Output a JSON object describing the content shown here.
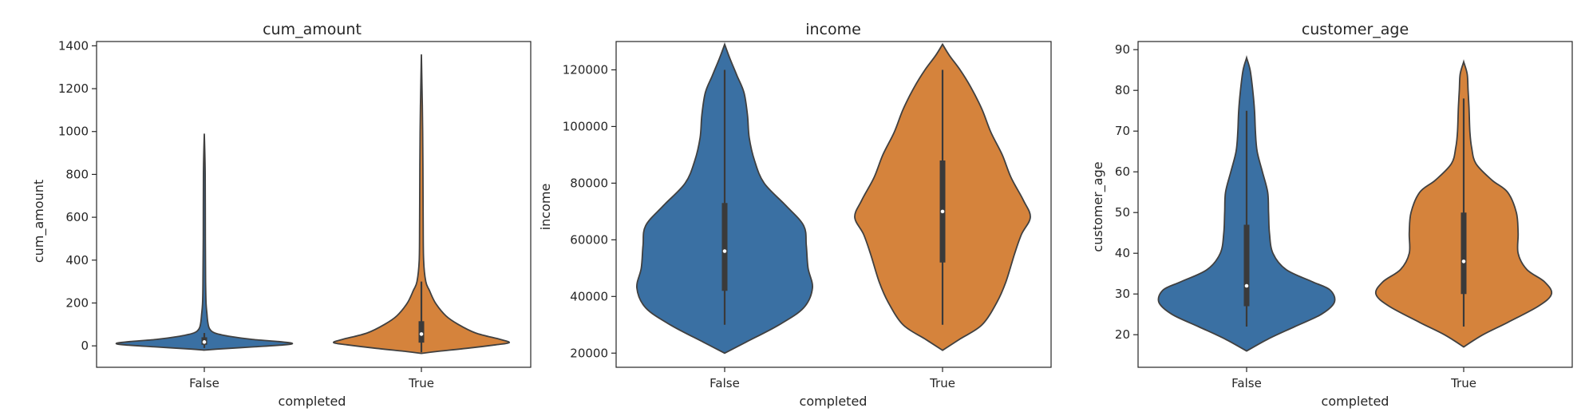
{
  "chart_data": [
    {
      "type": "violin",
      "title": "cum_amount",
      "xlabel": "completed",
      "ylabel": "cum_amount",
      "categories": [
        "False",
        "True"
      ],
      "colors": [
        "#3a70a3",
        "#d5833c"
      ],
      "ylim": [
        -100,
        1420
      ],
      "yticks": [
        0,
        200,
        400,
        600,
        800,
        1000,
        1200,
        1400
      ],
      "groups": [
        {
          "category": "False",
          "min": -20,
          "max": 990,
          "q1": 5,
          "median": 18,
          "q3": 40,
          "whisker_low": -10,
          "whisker_high": 60,
          "density": [
            [
              -20,
              0
            ],
            [
              -15,
              0.15
            ],
            [
              -5,
              0.55
            ],
            [
              5,
              0.92
            ],
            [
              12,
              1.0
            ],
            [
              20,
              0.85
            ],
            [
              30,
              0.55
            ],
            [
              45,
              0.28
            ],
            [
              60,
              0.12
            ],
            [
              80,
              0.06
            ],
            [
              110,
              0.04
            ],
            [
              150,
              0.03
            ],
            [
              200,
              0.02
            ],
            [
              300,
              0.015
            ],
            [
              500,
              0.012
            ],
            [
              800,
              0.01
            ],
            [
              990,
              0
            ]
          ]
        },
        {
          "category": "True",
          "min": -35,
          "max": 1360,
          "q1": 15,
          "median": 55,
          "q3": 115,
          "whisker_low": -30,
          "whisker_high": 300,
          "density": [
            [
              -35,
              0
            ],
            [
              -25,
              0.2
            ],
            [
              -10,
              0.55
            ],
            [
              5,
              0.85
            ],
            [
              15,
              1.0
            ],
            [
              30,
              0.9
            ],
            [
              60,
              0.62
            ],
            [
              100,
              0.42
            ],
            [
              140,
              0.28
            ],
            [
              200,
              0.16
            ],
            [
              260,
              0.09
            ],
            [
              300,
              0.05
            ],
            [
              400,
              0.025
            ],
            [
              600,
              0.02
            ],
            [
              1000,
              0.015
            ],
            [
              1360,
              0
            ]
          ]
        }
      ]
    },
    {
      "type": "violin",
      "title": "income",
      "xlabel": "completed",
      "ylabel": "income",
      "categories": [
        "False",
        "True"
      ],
      "colors": [
        "#3a70a3",
        "#d5833c"
      ],
      "ylim": [
        15000,
        130000
      ],
      "yticks": [
        20000,
        40000,
        60000,
        80000,
        100000,
        120000
      ],
      "groups": [
        {
          "category": "False",
          "min": 20000,
          "max": 129000,
          "q1": 42000,
          "median": 56000,
          "q3": 73000,
          "whisker_low": 30000,
          "whisker_high": 120000,
          "density": [
            [
              20000,
              0
            ],
            [
              24000,
              0.25
            ],
            [
              30000,
              0.62
            ],
            [
              36000,
              0.9
            ],
            [
              43000,
              1.0
            ],
            [
              50000,
              0.95
            ],
            [
              58000,
              0.93
            ],
            [
              65000,
              0.9
            ],
            [
              72000,
              0.7
            ],
            [
              80000,
              0.45
            ],
            [
              88000,
              0.34
            ],
            [
              96000,
              0.28
            ],
            [
              104000,
              0.26
            ],
            [
              112000,
              0.22
            ],
            [
              118000,
              0.14
            ],
            [
              124000,
              0.06
            ],
            [
              129000,
              0
            ]
          ]
        },
        {
          "category": "True",
          "min": 21000,
          "max": 129000,
          "q1": 52000,
          "median": 70000,
          "q3": 88000,
          "whisker_low": 30000,
          "whisker_high": 120000,
          "density": [
            [
              21000,
              0
            ],
            [
              25000,
              0.2
            ],
            [
              30000,
              0.45
            ],
            [
              38000,
              0.62
            ],
            [
              45000,
              0.72
            ],
            [
              55000,
              0.82
            ],
            [
              62000,
              0.9
            ],
            [
              68000,
              1.0
            ],
            [
              74000,
              0.92
            ],
            [
              82000,
              0.78
            ],
            [
              90000,
              0.68
            ],
            [
              98000,
              0.55
            ],
            [
              106000,
              0.45
            ],
            [
              114000,
              0.32
            ],
            [
              120000,
              0.2
            ],
            [
              125000,
              0.08
            ],
            [
              129000,
              0
            ]
          ]
        }
      ]
    },
    {
      "type": "violin",
      "title": "customer_age",
      "xlabel": "completed",
      "ylabel": "customer_age",
      "categories": [
        "False",
        "True"
      ],
      "colors": [
        "#3a70a3",
        "#d5833c"
      ],
      "ylim": [
        12,
        92
      ],
      "yticks": [
        20,
        30,
        40,
        50,
        60,
        70,
        80,
        90
      ],
      "groups": [
        {
          "category": "False",
          "min": 16,
          "max": 88,
          "q1": 27,
          "median": 32,
          "q3": 47,
          "whisker_low": 22,
          "whisker_high": 75,
          "density": [
            [
              16,
              0
            ],
            [
              19,
              0.25
            ],
            [
              22,
              0.55
            ],
            [
              25,
              0.85
            ],
            [
              28,
              1.0
            ],
            [
              31,
              0.95
            ],
            [
              33,
              0.75
            ],
            [
              36,
              0.45
            ],
            [
              40,
              0.3
            ],
            [
              45,
              0.26
            ],
            [
              50,
              0.25
            ],
            [
              55,
              0.24
            ],
            [
              60,
              0.18
            ],
            [
              65,
              0.12
            ],
            [
              70,
              0.1
            ],
            [
              75,
              0.09
            ],
            [
              80,
              0.07
            ],
            [
              85,
              0.04
            ],
            [
              88,
              0
            ]
          ]
        },
        {
          "category": "True",
          "min": 17,
          "max": 87,
          "q1": 30,
          "median": 38,
          "q3": 50,
          "whisker_low": 22,
          "whisker_high": 78,
          "density": [
            [
              17,
              0
            ],
            [
              20,
              0.22
            ],
            [
              23,
              0.5
            ],
            [
              27,
              0.85
            ],
            [
              30,
              1.0
            ],
            [
              33,
              0.92
            ],
            [
              36,
              0.72
            ],
            [
              40,
              0.62
            ],
            [
              45,
              0.62
            ],
            [
              50,
              0.6
            ],
            [
              55,
              0.5
            ],
            [
              58,
              0.32
            ],
            [
              62,
              0.14
            ],
            [
              66,
              0.09
            ],
            [
              70,
              0.07
            ],
            [
              76,
              0.06
            ],
            [
              80,
              0.05
            ],
            [
              84,
              0.04
            ],
            [
              87,
              0
            ]
          ]
        }
      ]
    }
  ]
}
